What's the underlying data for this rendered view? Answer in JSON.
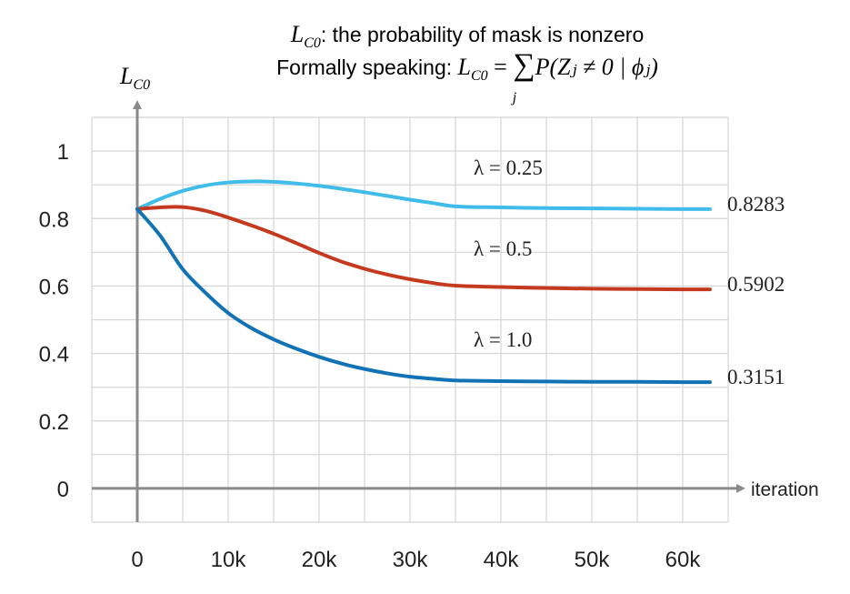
{
  "chart_data": {
    "type": "line",
    "title": {
      "line1_sym": "L",
      "line1_sub": "C0",
      "line1_text": ": the probability of mask is nonzero",
      "line2_prefix": "Formally speaking: ",
      "line2_sym": "L",
      "line2_sub": "C0",
      "line2_eq": " = ",
      "line2_sum": "∑",
      "line2_sum_index": "j",
      "line2_expr": "P(Zⱼ ≠ 0 | ϕⱼ)"
    },
    "ylabel": {
      "sym": "L",
      "sub": "C0"
    },
    "xlabel": "iteration",
    "xlim": [
      -5000,
      65000
    ],
    "ylim": [
      -0.1,
      1.1
    ],
    "x_ticks": [
      0,
      10000,
      20000,
      30000,
      40000,
      50000,
      60000
    ],
    "x_tick_labels": [
      "0",
      "10k",
      "20k",
      "30k",
      "40k",
      "50k",
      "60k"
    ],
    "y_ticks": [
      0,
      0.2,
      0.4,
      0.6,
      0.8,
      1.0
    ],
    "y_tick_labels": [
      "0",
      "0.2",
      "0.4",
      "0.6",
      "0.8",
      "1"
    ],
    "grid": true,
    "series": [
      {
        "name": "λ = 0.25",
        "color": "#3fbcea",
        "end_label": "0.8283",
        "x": [
          0,
          2500,
          5000,
          7500,
          10000,
          12500,
          15000,
          17500,
          20000,
          22500,
          25000,
          27500,
          30000,
          32500,
          35000,
          40000,
          45000,
          50000,
          55000,
          60000,
          63000
        ],
        "y": [
          0.828,
          0.858,
          0.882,
          0.898,
          0.907,
          0.91,
          0.909,
          0.904,
          0.897,
          0.888,
          0.878,
          0.867,
          0.856,
          0.846,
          0.836,
          0.833,
          0.831,
          0.83,
          0.829,
          0.828,
          0.828
        ]
      },
      {
        "name": "λ = 0.5",
        "color": "#c53a1f",
        "end_label": "0.5902",
        "x": [
          0,
          2500,
          5000,
          7500,
          10000,
          12500,
          15000,
          17500,
          20000,
          22500,
          25000,
          27500,
          30000,
          32500,
          35000,
          40000,
          45000,
          50000,
          55000,
          60000,
          63000
        ],
        "y": [
          0.828,
          0.833,
          0.834,
          0.823,
          0.803,
          0.78,
          0.755,
          0.727,
          0.698,
          0.672,
          0.651,
          0.634,
          0.62,
          0.609,
          0.601,
          0.597,
          0.594,
          0.592,
          0.591,
          0.59,
          0.59
        ]
      },
      {
        "name": "λ = 1.0",
        "color": "#1173b6",
        "end_label": "0.3151",
        "x": [
          0,
          2500,
          5000,
          7500,
          10000,
          12500,
          15000,
          17500,
          20000,
          22500,
          25000,
          27500,
          30000,
          32500,
          35000,
          40000,
          45000,
          50000,
          55000,
          60000,
          63000
        ],
        "y": [
          0.828,
          0.75,
          0.65,
          0.58,
          0.52,
          0.476,
          0.442,
          0.414,
          0.39,
          0.37,
          0.354,
          0.341,
          0.331,
          0.325,
          0.32,
          0.318,
          0.317,
          0.316,
          0.316,
          0.315,
          0.315
        ]
      }
    ],
    "series_label_positions": [
      {
        "x": 37000,
        "y": 0.93
      },
      {
        "x": 37000,
        "y": 0.69
      },
      {
        "x": 37000,
        "y": 0.42
      }
    ]
  }
}
